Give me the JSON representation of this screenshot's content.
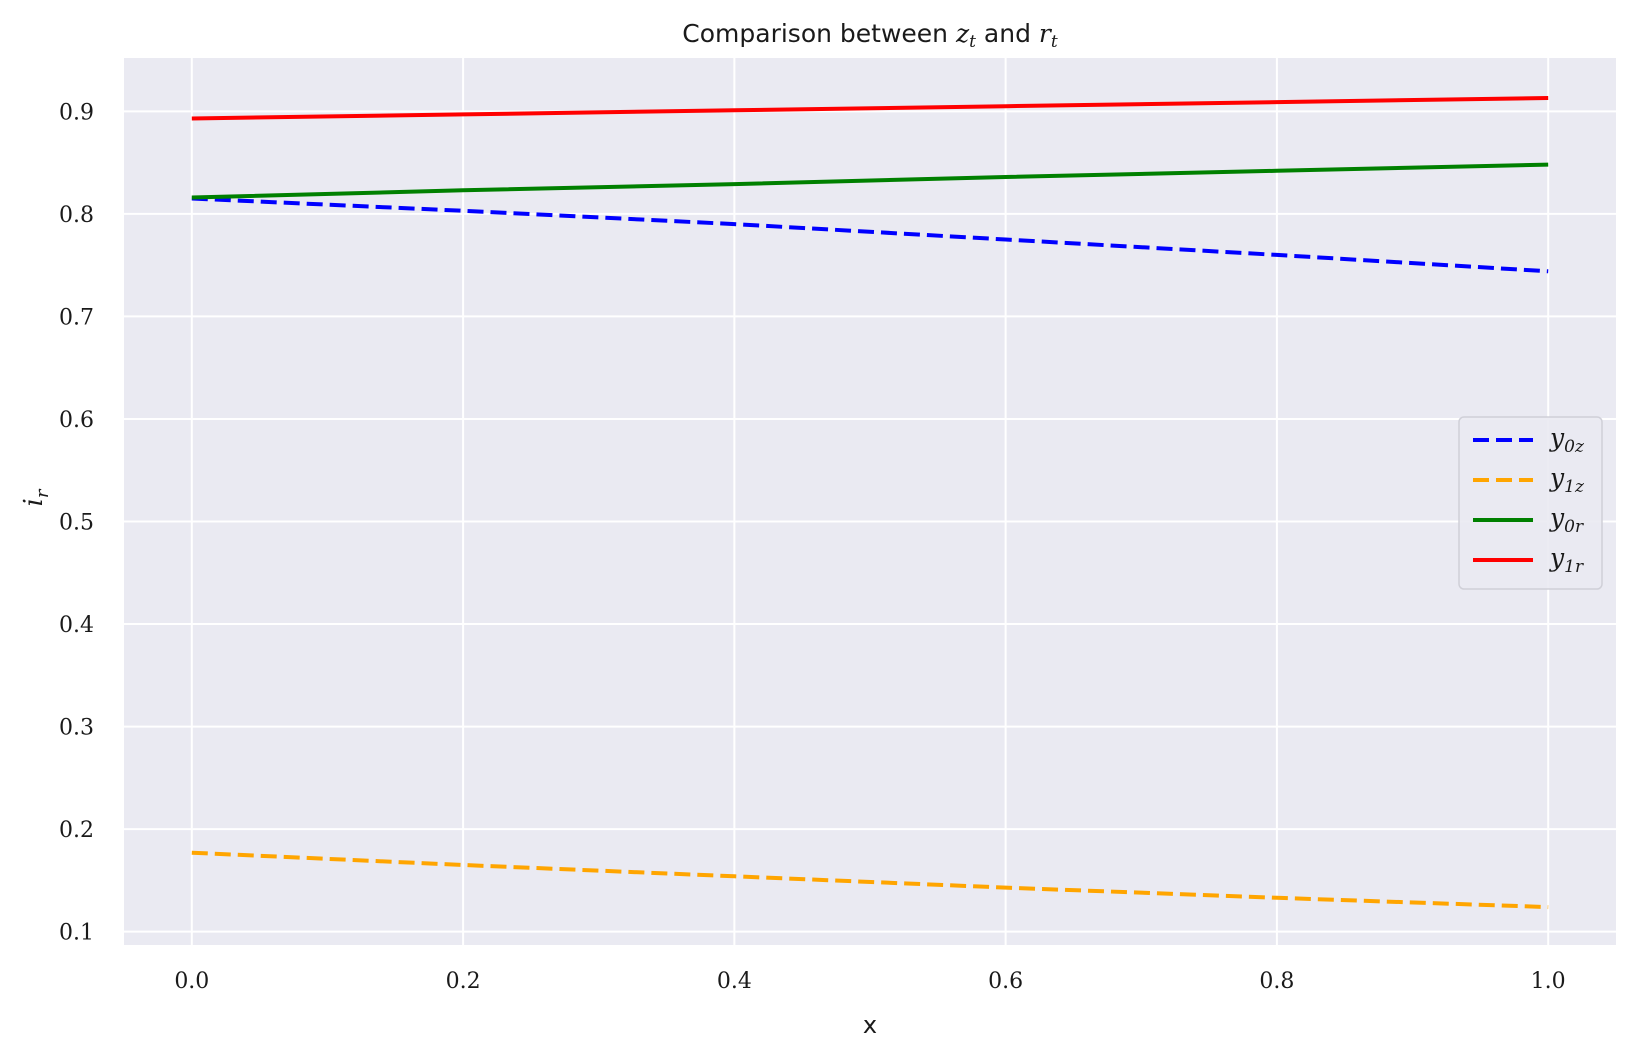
{
  "chart_data": {
    "type": "line",
    "title": {
      "prefix": "Comparison between ",
      "var1": "z",
      "var1_sub": "t",
      "middle": " and ",
      "var2": "r",
      "var2_sub": "t"
    },
    "xlabel": "x",
    "ylabel": {
      "base": "i",
      "sub": "r"
    },
    "xlim": [
      -0.05,
      1.05
    ],
    "ylim": [
      0.087,
      0.952
    ],
    "xticks": [
      0.0,
      0.2,
      0.4,
      0.6,
      0.8,
      1.0
    ],
    "xtick_labels": [
      "0.0",
      "0.2",
      "0.4",
      "0.6",
      "0.8",
      "1.0"
    ],
    "yticks": [
      0.1,
      0.2,
      0.3,
      0.4,
      0.5,
      0.6,
      0.7,
      0.8,
      0.9
    ],
    "ytick_labels": [
      "0.1",
      "0.2",
      "0.3",
      "0.4",
      "0.5",
      "0.6",
      "0.7",
      "0.8",
      "0.9"
    ],
    "grid": true,
    "legend_position": "center-right",
    "background_color": "#eaeaf2",
    "x": [
      0.0,
      0.2,
      0.4,
      0.6,
      0.8,
      1.0
    ],
    "series": [
      {
        "name": "y_{0z}",
        "label_base": "y",
        "label_sub": "0z",
        "color": "#0000ff",
        "style": "dashed",
        "values": [
          0.815,
          0.803,
          0.79,
          0.775,
          0.76,
          0.744
        ]
      },
      {
        "name": "y_{1z}",
        "label_base": "y",
        "label_sub": "1z",
        "color": "#ffa500",
        "style": "dashed",
        "values": [
          0.177,
          0.165,
          0.154,
          0.143,
          0.133,
          0.124
        ]
      },
      {
        "name": "y_{0r}",
        "label_base": "y",
        "label_sub": "0r",
        "color": "#008000",
        "style": "solid",
        "values": [
          0.816,
          0.823,
          0.829,
          0.836,
          0.842,
          0.848
        ]
      },
      {
        "name": "y_{1r}",
        "label_base": "y",
        "label_sub": "1r",
        "color": "#ff0000",
        "style": "solid",
        "values": [
          0.893,
          0.897,
          0.901,
          0.905,
          0.909,
          0.913
        ]
      }
    ]
  }
}
